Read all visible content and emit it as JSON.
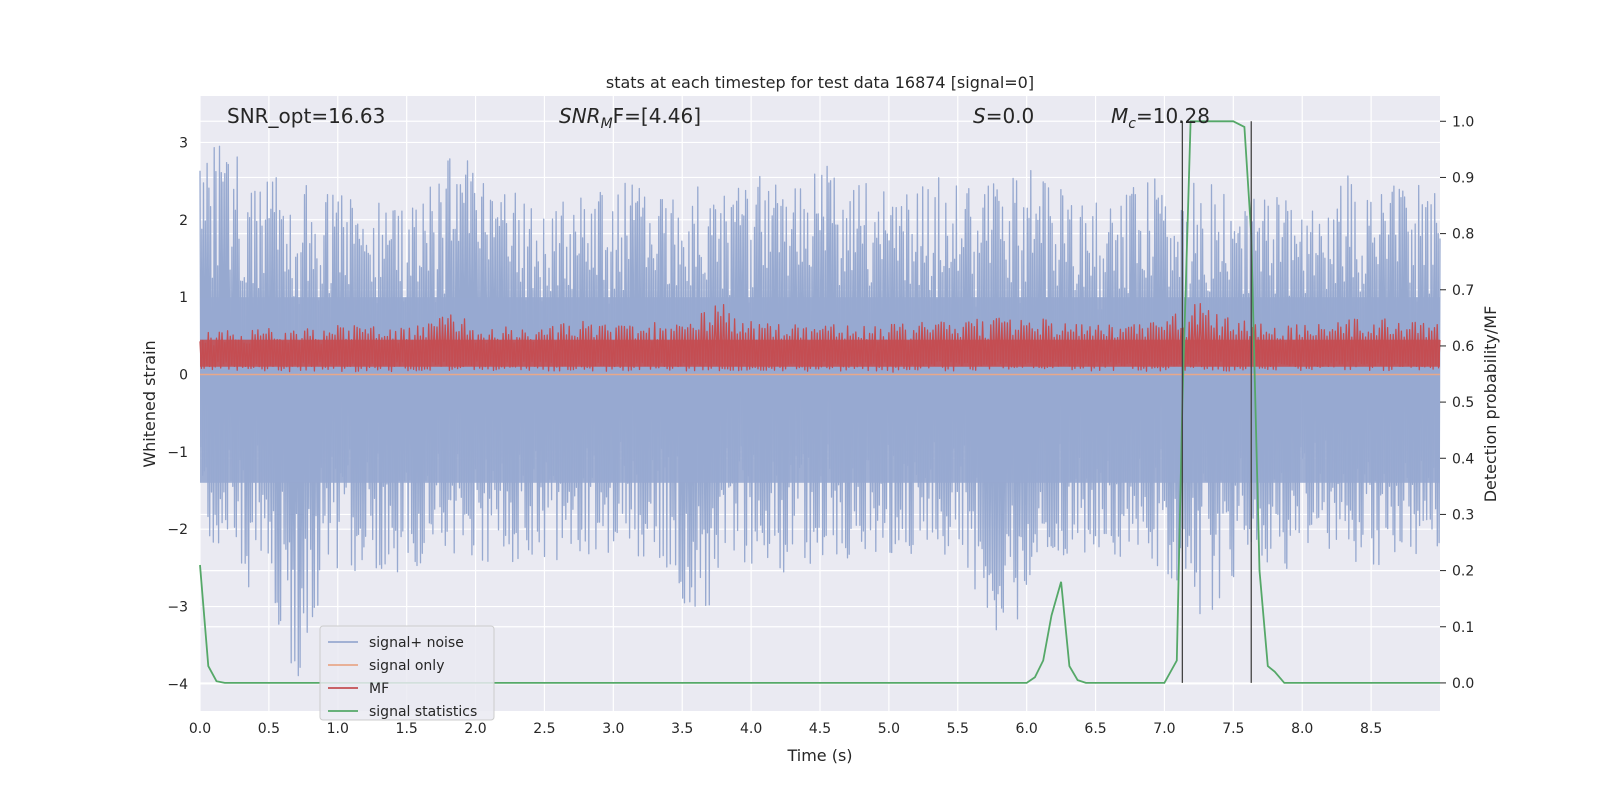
{
  "chart_data": {
    "type": "line",
    "title": "stats at each timestep for test data 16874 [signal=0]",
    "xlabel": "Time (s)",
    "ylabel": "Whitened strain",
    "ylabel_right": "Detection probability/MF",
    "xlim": [
      0,
      9.0
    ],
    "ylim": [
      -4.35,
      3.6
    ],
    "ylim_right": [
      -0.05,
      1.045
    ],
    "x_ticks": [
      0.0,
      0.5,
      1.0,
      1.5,
      2.0,
      2.5,
      3.0,
      3.5,
      4.0,
      4.5,
      5.0,
      5.5,
      6.0,
      6.5,
      7.0,
      7.5,
      8.0,
      8.5
    ],
    "x_tick_labels": [
      "0.0",
      "0.5",
      "1.0",
      "1.5",
      "2.0",
      "2.5",
      "3.0",
      "3.5",
      "4.0",
      "4.5",
      "5.0",
      "5.5",
      "6.0",
      "6.5",
      "7.0",
      "7.5",
      "8.0",
      "8.5"
    ],
    "y_ticks": [
      -4,
      -3,
      -2,
      -1,
      0,
      1,
      2,
      3
    ],
    "y_tick_labels": [
      "−4",
      "−3",
      "−2",
      "−1",
      "0",
      "1",
      "2",
      "3"
    ],
    "y_ticks_right": [
      0.0,
      0.1,
      0.2,
      0.3,
      0.4,
      0.5,
      0.6,
      0.7,
      0.8,
      0.9,
      1.0
    ],
    "y_tick_labels_right": [
      "0.0",
      "0.1",
      "0.2",
      "0.3",
      "0.4",
      "0.5",
      "0.6",
      "0.7",
      "0.8",
      "0.9",
      "1.0"
    ],
    "grid": true,
    "legend_position": "lower-left",
    "annotations": {
      "snr_opt": "SNR_opt=16.63",
      "snr_mf_main": "SNR",
      "snr_mf_sub": "M",
      "snr_mf_rest": "F=[4.46]",
      "s_main": "S",
      "s_rest": "=0.0",
      "mc_main": "M",
      "mc_sub": "c",
      "mc_rest": "=10.28"
    },
    "vertical_markers": [
      7.13,
      7.63
    ],
    "series": [
      {
        "name": "signal+ noise",
        "color": "#97a9d0",
        "axis": "left",
        "style": "noise band",
        "upper_envelope": {
          "x": [
            0.0,
            0.2,
            0.35,
            0.6,
            0.95,
            1.3,
            1.65,
            1.85,
            2.2,
            2.5,
            2.75,
            3.0,
            3.3,
            3.55,
            3.8,
            4.05,
            4.3,
            4.55,
            4.8,
            5.05,
            5.35,
            5.55,
            5.85,
            6.1,
            6.35,
            6.6,
            6.9,
            7.1,
            7.25,
            7.5,
            7.75,
            8.0,
            8.3,
            8.55,
            8.75,
            9.0
          ],
          "y": [
            2.7,
            3.25,
            2.4,
            2.6,
            2.4,
            2.3,
            2.5,
            2.9,
            2.5,
            2.2,
            2.4,
            2.6,
            2.3,
            2.5,
            2.5,
            2.6,
            2.4,
            2.7,
            2.5,
            2.3,
            2.6,
            2.4,
            2.5,
            2.7,
            2.3,
            2.2,
            2.6,
            2.3,
            2.6,
            2.4,
            2.5,
            2.2,
            2.6,
            2.4,
            2.6,
            2.4
          ]
        },
        "lower_envelope": {
          "x": [
            0.0,
            0.2,
            0.3,
            0.45,
            0.7,
            0.95,
            1.25,
            1.5,
            1.8,
            2.1,
            2.35,
            2.7,
            3.0,
            3.35,
            3.6,
            3.9,
            4.2,
            4.55,
            4.9,
            5.2,
            5.55,
            5.8,
            6.1,
            6.4,
            6.7,
            7.0,
            7.3,
            7.6,
            7.9,
            8.2,
            8.5,
            8.8,
            9.0
          ],
          "y": [
            -2.2,
            -2.3,
            -3.1,
            -2.4,
            -4.1,
            -2.6,
            -2.5,
            -2.7,
            -2.3,
            -2.5,
            -2.4,
            -2.5,
            -2.3,
            -2.4,
            -3.3,
            -2.4,
            -2.6,
            -2.5,
            -2.3,
            -2.5,
            -2.4,
            -3.75,
            -2.5,
            -2.3,
            -2.4,
            -2.5,
            -3.4,
            -2.4,
            -2.6,
            -2.3,
            -2.5,
            -2.4,
            -2.2
          ]
        }
      },
      {
        "name": "signal only",
        "color": "#e8a88a",
        "axis": "left",
        "x": [
          0.0,
          9.0
        ],
        "y": [
          0.0,
          0.0
        ]
      },
      {
        "name": "MF",
        "color": "#c44e52",
        "axis": "left",
        "style": "noise band",
        "center": 0.25,
        "upper_envelope": {
          "x": [
            0.0,
            0.5,
            1.0,
            1.5,
            1.85,
            2.0,
            2.5,
            2.85,
            3.0,
            3.5,
            3.8,
            4.0,
            4.5,
            5.0,
            5.5,
            6.0,
            6.5,
            7.0,
            7.3,
            7.5,
            8.0,
            8.5,
            9.0
          ],
          "y": [
            0.55,
            0.6,
            0.65,
            0.6,
            0.8,
            0.65,
            0.6,
            0.75,
            0.65,
            0.7,
            0.95,
            0.7,
            0.65,
            0.65,
            0.7,
            0.75,
            0.65,
            0.7,
            1.0,
            0.7,
            0.65,
            0.75,
            0.65
          ]
        },
        "lower_envelope": {
          "x": [
            0.0,
            1.0,
            2.0,
            3.0,
            4.0,
            5.0,
            6.0,
            7.0,
            8.0,
            9.0
          ],
          "y": [
            0.05,
            0.03,
            0.05,
            0.04,
            0.05,
            0.03,
            0.05,
            0.04,
            0.05,
            0.05
          ]
        }
      },
      {
        "name": "signal statistics",
        "color": "#55a868",
        "axis": "right",
        "x": [
          0.0,
          0.06,
          0.12,
          0.18,
          0.3,
          1.0,
          2.0,
          3.0,
          4.0,
          5.0,
          6.0,
          6.06,
          6.12,
          6.18,
          6.25,
          6.31,
          6.37,
          6.43,
          7.0,
          7.09,
          7.13,
          7.19,
          7.5,
          7.58,
          7.63,
          7.69,
          7.75,
          7.8,
          7.87,
          9.0
        ],
        "y": [
          0.21,
          0.03,
          0.003,
          0.0,
          0.0,
          0.0,
          0.0,
          0.0,
          0.0,
          0.0,
          0.0,
          0.01,
          0.04,
          0.12,
          0.18,
          0.03,
          0.005,
          0.0,
          0.0,
          0.04,
          0.5,
          1.0,
          1.0,
          0.99,
          0.8,
          0.2,
          0.03,
          0.02,
          0.0,
          0.0
        ]
      }
    ]
  }
}
